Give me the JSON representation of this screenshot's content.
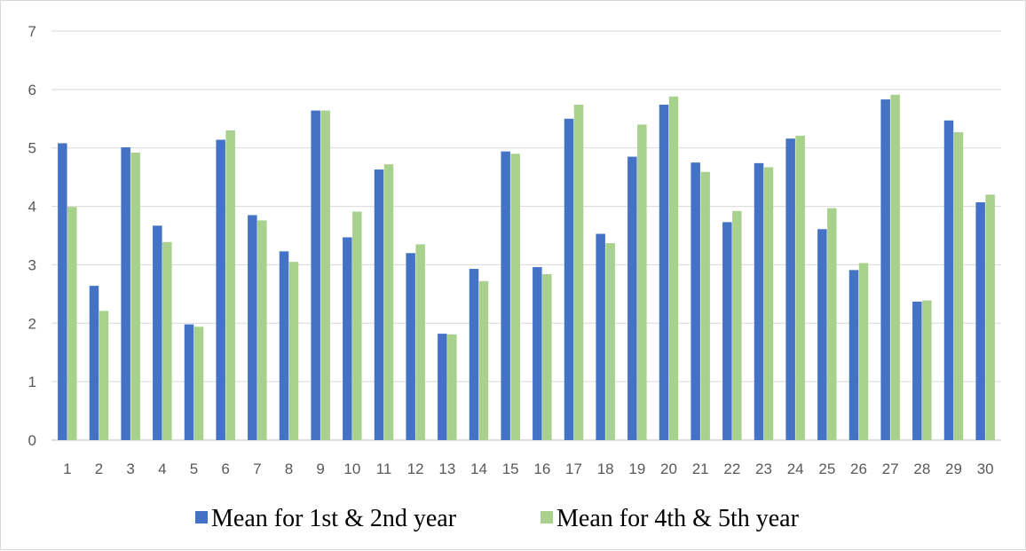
{
  "chart_data": {
    "type": "bar",
    "title": "",
    "xlabel": "",
    "ylabel": "",
    "ylim": [
      0,
      7
    ],
    "yticks": [
      0,
      1,
      2,
      3,
      4,
      5,
      6,
      7
    ],
    "grid": true,
    "legend_position": "bottom",
    "categories": [
      "1",
      "2",
      "3",
      "4",
      "5",
      "6",
      "7",
      "8",
      "9",
      "10",
      "11",
      "12",
      "13",
      "14",
      "15",
      "16",
      "17",
      "18",
      "19",
      "20",
      "21",
      "22",
      "23",
      "24",
      "25",
      "26",
      "27",
      "28",
      "29",
      "30"
    ],
    "series": [
      {
        "name": "Mean for 1st & 2nd year",
        "color": "#4472c4",
        "values": [
          5.08,
          2.64,
          5.01,
          3.67,
          1.98,
          5.14,
          3.85,
          3.23,
          5.64,
          3.47,
          4.63,
          3.2,
          1.82,
          2.93,
          4.94,
          2.96,
          5.5,
          3.53,
          4.85,
          5.74,
          4.75,
          3.73,
          4.74,
          5.16,
          3.61,
          2.91,
          5.83,
          2.37,
          5.47,
          4.07
        ]
      },
      {
        "name": "Mean for 4th & 5th year",
        "color": "#a9d18e",
        "values": [
          3.99,
          2.21,
          4.92,
          3.39,
          1.94,
          5.3,
          3.76,
          3.05,
          5.64,
          3.91,
          4.72,
          3.35,
          1.81,
          2.72,
          4.9,
          2.84,
          5.74,
          3.37,
          5.4,
          5.88,
          4.59,
          3.92,
          4.67,
          5.21,
          3.97,
          3.03,
          5.91,
          2.39,
          5.27,
          4.2
        ]
      }
    ]
  }
}
